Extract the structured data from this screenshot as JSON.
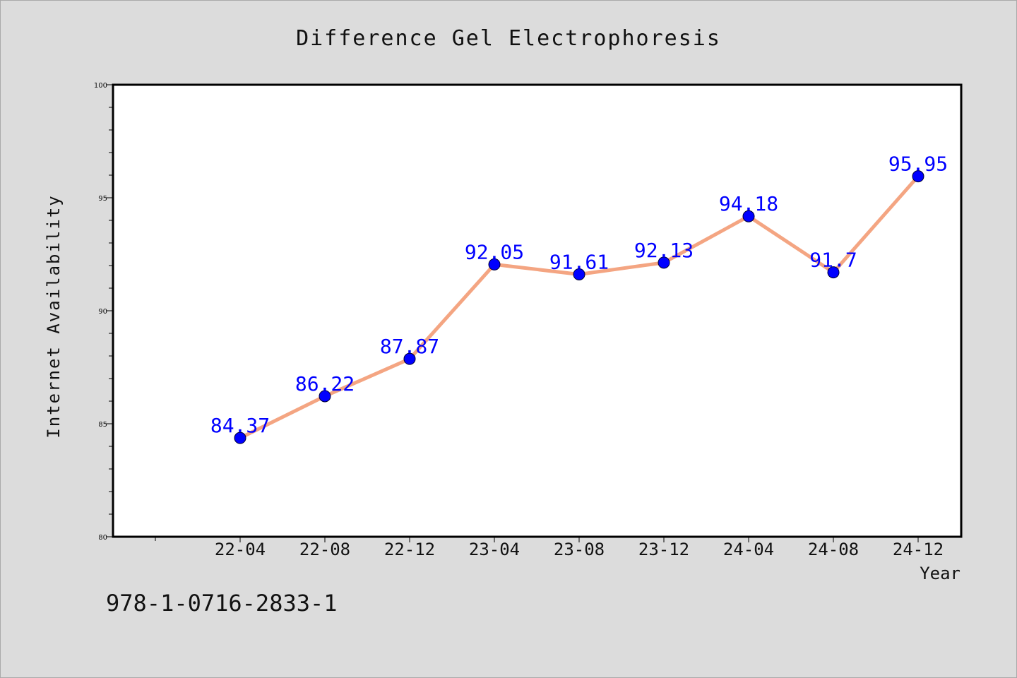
{
  "chart_data": {
    "type": "line",
    "title": "Difference Gel Electrophoresis",
    "xlabel": "Year",
    "ylabel": "Internet Availability",
    "categories": [
      "22-04",
      "22-08",
      "22-12",
      "23-04",
      "23-08",
      "23-12",
      "24-04",
      "24-08",
      "24-12"
    ],
    "series": [
      {
        "values": [
          84.37,
          86.22,
          87.87,
          92.05,
          91.61,
          92.13,
          94.18,
          91.7,
          95.95
        ],
        "labels": [
          "84.37",
          "86.22",
          "87.87",
          "92.05",
          "91.61",
          "92.13",
          "94.18",
          "91.7",
          "95.95"
        ],
        "line_color": "#f4a582",
        "marker_color": "#0000ff"
      }
    ],
    "ylim": [
      80,
      100
    ],
    "yticks": [
      "80",
      "85",
      "90",
      "95",
      "100"
    ],
    "grid": false,
    "legend": "none"
  },
  "footer": {
    "isbn": "978-1-0716-2833-1"
  },
  "colors": {
    "background": "#dcdcdc",
    "plot_background": "#ffffff",
    "label_color": "#0000ff"
  }
}
